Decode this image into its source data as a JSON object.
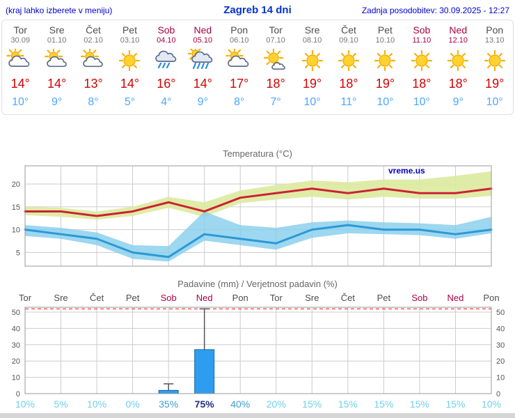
{
  "header": {
    "hint": "(kraj lahko izberete v meniju)",
    "title": "Zagreb 14 dni",
    "updated": "Zadnja posodobitev: 30.09.2025 - 12:27"
  },
  "days": [
    {
      "name": "Tor",
      "date": "30.09",
      "weekend": false,
      "icon": "mostly-cloudy",
      "tmax": "14°",
      "tmin": "10°"
    },
    {
      "name": "Sre",
      "date": "01.10",
      "weekend": false,
      "icon": "partly-cloudy",
      "tmax": "14°",
      "tmin": "9°"
    },
    {
      "name": "Čet",
      "date": "02.10",
      "weekend": false,
      "icon": "partly-cloudy",
      "tmax": "13°",
      "tmin": "8°"
    },
    {
      "name": "Pet",
      "date": "03.10",
      "weekend": false,
      "icon": "sunny",
      "tmax": "14°",
      "tmin": "5°"
    },
    {
      "name": "Sob",
      "date": "04.10",
      "weekend": true,
      "icon": "rain",
      "tmax": "16°",
      "tmin": "4°"
    },
    {
      "name": "Ned",
      "date": "05.10",
      "weekend": true,
      "icon": "rain-sun",
      "tmax": "14°",
      "tmin": "9°"
    },
    {
      "name": "Pon",
      "date": "06.10",
      "weekend": false,
      "icon": "mostly-cloudy",
      "tmax": "17°",
      "tmin": "8°"
    },
    {
      "name": "Tor",
      "date": "07.10",
      "weekend": false,
      "icon": "mostly-sunny",
      "tmax": "18°",
      "tmin": "7°"
    },
    {
      "name": "Sre",
      "date": "08.10",
      "weekend": false,
      "icon": "sunny",
      "tmax": "19°",
      "tmin": "10°"
    },
    {
      "name": "Čet",
      "date": "09.10",
      "weekend": false,
      "icon": "sunny",
      "tmax": "18°",
      "tmin": "11°"
    },
    {
      "name": "Pet",
      "date": "10.10",
      "weekend": false,
      "icon": "sunny",
      "tmax": "19°",
      "tmin": "10°"
    },
    {
      "name": "Sob",
      "date": "11.10",
      "weekend": true,
      "icon": "sunny",
      "tmax": "18°",
      "tmin": "10°"
    },
    {
      "name": "Ned",
      "date": "12.10",
      "weekend": true,
      "icon": "sunny",
      "tmax": "18°",
      "tmin": "9°"
    },
    {
      "name": "Pon",
      "date": "13.10",
      "weekend": false,
      "icon": "sunny",
      "tmax": "19°",
      "tmin": "10°"
    }
  ],
  "chart_data": [
    {
      "type": "line",
      "title": "Temperatura (°C)",
      "watermark": "vreme.us",
      "ylim": [
        2,
        24
      ],
      "yticks": [
        5,
        10,
        15,
        20
      ],
      "grid": true,
      "series": [
        {
          "name": "max temperature",
          "color": "#cc2233",
          "values": [
            14,
            14,
            13,
            14,
            16,
            14,
            17,
            18,
            19,
            18,
            19,
            18,
            18,
            19
          ]
        },
        {
          "name": "min temperature",
          "color": "#2b98d6",
          "values": [
            10,
            9,
            8,
            5,
            4,
            9,
            8,
            7,
            10,
            11,
            10,
            10,
            9,
            10
          ]
        }
      ],
      "bands": [
        {
          "name": "max-range",
          "color": "#dcea9e",
          "opacity": 0.9,
          "upper": [
            15,
            14.8,
            14,
            15,
            17.2,
            16,
            18.6,
            19.8,
            20.8,
            20.4,
            21,
            21,
            21.8,
            22.8
          ],
          "lower": [
            13.2,
            12.8,
            12.2,
            13,
            14.8,
            12.8,
            15.8,
            16.6,
            17.2,
            16.6,
            17.2,
            16.8,
            16.8,
            17.4
          ]
        },
        {
          "name": "min-range",
          "color": "#85cdec",
          "opacity": 0.8,
          "upper": [
            11,
            10.4,
            9.4,
            6.6,
            6.4,
            14,
            11,
            10.4,
            11.6,
            12,
            11.6,
            11.4,
            11,
            12.8
          ],
          "lower": [
            8.6,
            8,
            6.6,
            3.6,
            3,
            7.6,
            6.6,
            5.6,
            8.2,
            9.2,
            9,
            8.8,
            8,
            9.2
          ]
        }
      ]
    },
    {
      "type": "bar",
      "title": "Padavine (mm) / Verjetnost padavin (%)",
      "categories": [
        "Tor",
        "Sre",
        "Čet",
        "Pet",
        "Sob",
        "Ned",
        "Pon",
        "Tor",
        "Sre",
        "Čet",
        "Pet",
        "Sob",
        "Ned",
        "Pon"
      ],
      "precip_mm": [
        0,
        0,
        0,
        0,
        2,
        27,
        0,
        0,
        0,
        0,
        0,
        0,
        0,
        0
      ],
      "whisker_max": [
        0,
        0,
        0,
        0,
        6,
        52,
        0,
        0,
        0,
        0,
        0,
        0,
        0,
        0
      ],
      "probability_pct": [
        10,
        5,
        10,
        0,
        35,
        75,
        40,
        20,
        15,
        15,
        15,
        15,
        15,
        10
      ],
      "ylim": [
        0,
        53
      ],
      "yticks": [
        0,
        10,
        20,
        30,
        40,
        50
      ],
      "dashed_line_value": 52,
      "grid": true,
      "legend": "none"
    }
  ],
  "colors": {
    "link_blue": "#0000cc",
    "title_blue": "#0033cc",
    "weekday": "#4d4d4d",
    "weekend": "#aa0044",
    "tmax_red": "#d40000",
    "tmin_blue": "#4aa8ff",
    "grid": "#cccccc",
    "frame": "#999999",
    "bar_fill": "#2e9df0",
    "bar_stroke": "#1565a8",
    "whisker": "#555555",
    "dashed_red": "#ff5555",
    "pct_low": "#6fd0e8",
    "pct_mid": "#3a9fc8",
    "pct_high": "#1b3080",
    "watermark": "#0000bb",
    "chart_title": "#666666"
  }
}
